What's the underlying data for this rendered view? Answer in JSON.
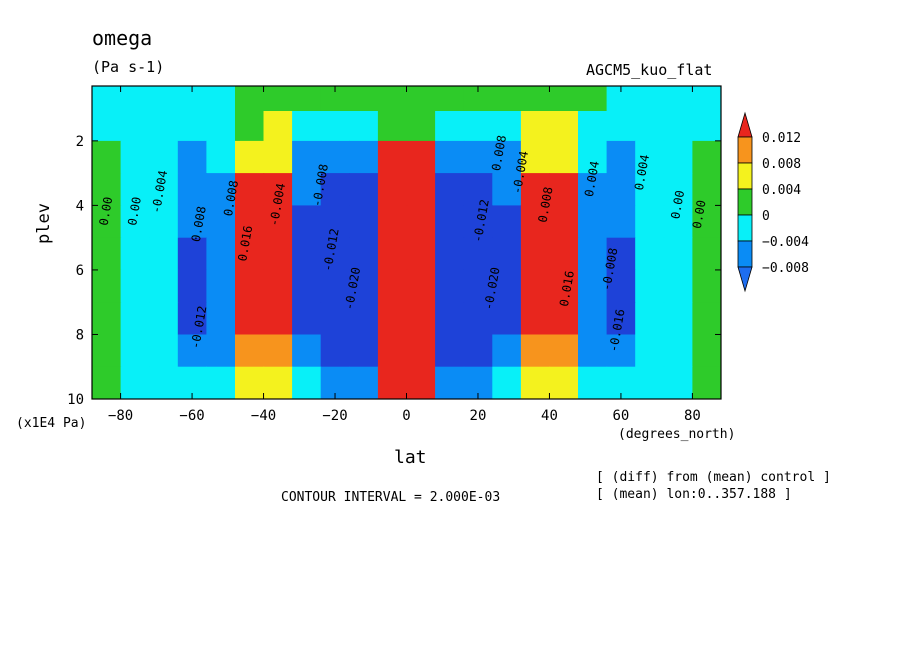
{
  "header": {
    "variable": "omega",
    "units": "(Pa s-1)",
    "experiment": "AGCM5_kuo_flat"
  },
  "footer": {
    "contour_interval": "CONTOUR INTERVAL = 2.000E-03",
    "note_diff": "[ (diff) from (mean) control ]",
    "note_mean": "[ (mean) lon:0..357.188 ]"
  },
  "chart_data": {
    "type": "heatmap",
    "xlabel": "lat",
    "xunit": "(degrees_north)",
    "ylabel": "plev",
    "yunit": "(x1E4 Pa)",
    "xlim": [
      -88,
      88
    ],
    "ylim": [
      10,
      0.3
    ],
    "x_ticks": [
      -80,
      -60,
      -40,
      -20,
      0,
      20,
      40,
      60,
      80
    ],
    "x_tick_labels": [
      "−80",
      "−60",
      "−40",
      "−20",
      "0",
      "20",
      "40",
      "60",
      "80"
    ],
    "y_ticks": [
      2,
      4,
      6,
      8,
      10
    ],
    "y_tick_labels": [
      "2",
      "4",
      "6",
      "8",
      "10"
    ],
    "colorbar": {
      "levels": [
        0.012,
        0.008,
        0.004,
        0,
        -0.004,
        -0.008
      ],
      "labels": [
        "0.012",
        "0.008",
        "0.004",
        "0",
        "−0.004",
        "−0.008"
      ],
      "colors": [
        "#e8261e",
        "#f7941d",
        "#f4f21e",
        "#2ecb2a",
        "#08f0f8",
        "#0a8cf5",
        "#1e42d8"
      ],
      "overflow_colors": {
        "high": "#e8261e",
        "low": "#1e6ef0"
      }
    },
    "cells_x": [
      -84,
      -76,
      -68,
      -60,
      -52,
      -44,
      -36,
      -28,
      -20,
      -12,
      -4,
      4,
      12,
      20,
      28,
      36,
      44,
      52,
      60,
      68,
      76,
      84
    ],
    "cells_y": [
      0.65,
      1.5,
      2.5,
      3.5,
      4.5,
      5.5,
      6.5,
      7.5,
      8.5,
      9.5
    ],
    "values": [
      [
        -0.002,
        -0.002,
        -0.002,
        -0.002,
        -0.002,
        0.001,
        0.002,
        0.001,
        0.001,
        0.001,
        0.001,
        0.001,
        0.001,
        0.001,
        0.001,
        0.002,
        0.002,
        0.001,
        -0.002,
        -0.002,
        -0.002,
        -0.002
      ],
      [
        -0.002,
        -0.002,
        -0.002,
        -0.003,
        -0.002,
        0.003,
        0.004,
        -0.003,
        -0.003,
        -0.002,
        0.001,
        0.001,
        -0.002,
        -0.003,
        -0.003,
        0.004,
        0.004,
        -0.002,
        -0.003,
        -0.002,
        -0.002,
        -0.002
      ],
      [
        0.001,
        -0.002,
        -0.003,
        -0.005,
        -0.003,
        0.006,
        0.007,
        -0.005,
        -0.006,
        -0.005,
        0.013,
        0.013,
        -0.005,
        -0.006,
        -0.005,
        0.007,
        0.006,
        -0.003,
        -0.005,
        -0.003,
        -0.002,
        0.001
      ],
      [
        0.001,
        -0.002,
        -0.003,
        -0.007,
        -0.005,
        0.012,
        0.014,
        -0.007,
        -0.009,
        -0.01,
        0.016,
        0.016,
        -0.01,
        -0.009,
        -0.007,
        0.014,
        0.012,
        -0.005,
        -0.007,
        -0.003,
        -0.002,
        0.001
      ],
      [
        0.001,
        -0.002,
        -0.003,
        -0.008,
        -0.006,
        0.013,
        0.015,
        -0.009,
        -0.01,
        -0.012,
        0.018,
        0.018,
        -0.012,
        -0.01,
        -0.009,
        0.015,
        0.013,
        -0.006,
        -0.008,
        -0.003,
        -0.002,
        0.001
      ],
      [
        0.001,
        -0.002,
        -0.003,
        -0.009,
        -0.006,
        0.014,
        0.016,
        -0.009,
        -0.011,
        -0.012,
        0.019,
        0.019,
        -0.012,
        -0.011,
        -0.009,
        0.016,
        0.014,
        -0.006,
        -0.009,
        -0.003,
        -0.002,
        0.001
      ],
      [
        0.001,
        -0.002,
        -0.004,
        -0.009,
        -0.007,
        0.014,
        0.016,
        -0.01,
        -0.011,
        -0.012,
        0.019,
        0.019,
        -0.012,
        -0.011,
        -0.01,
        0.016,
        0.014,
        -0.007,
        -0.009,
        -0.004,
        -0.002,
        0.001
      ],
      [
        0.001,
        -0.002,
        -0.004,
        -0.009,
        -0.006,
        0.013,
        0.015,
        -0.009,
        -0.011,
        -0.012,
        0.019,
        0.019,
        -0.012,
        -0.011,
        -0.009,
        0.015,
        0.013,
        -0.006,
        -0.009,
        -0.004,
        -0.002,
        0.001
      ],
      [
        0.001,
        -0.002,
        -0.003,
        -0.007,
        -0.005,
        0.008,
        0.01,
        -0.007,
        -0.009,
        -0.01,
        0.017,
        0.017,
        -0.01,
        -0.009,
        -0.007,
        0.01,
        0.008,
        -0.005,
        -0.007,
        -0.003,
        -0.002,
        0.001
      ],
      [
        0.001,
        -0.002,
        -0.002,
        -0.004,
        -0.003,
        0.004,
        0.006,
        -0.004,
        -0.005,
        -0.006,
        0.012,
        0.012,
        -0.006,
        -0.005,
        -0.004,
        0.006,
        0.004,
        -0.003,
        -0.004,
        -0.002,
        -0.002,
        0.001
      ]
    ],
    "contour_labels": [
      {
        "text": "0.00",
        "x": -83,
        "y": 4.2
      },
      {
        "text": "0.00",
        "x": -75,
        "y": 4.2
      },
      {
        "text": "-0.004",
        "x": -68,
        "y": 3.6
      },
      {
        "text": "0.008",
        "x": -57,
        "y": 4.6
      },
      {
        "text": "-0.012",
        "x": -57,
        "y": 7.8
      },
      {
        "text": "0.008",
        "x": -48,
        "y": 3.8
      },
      {
        "text": "0.016",
        "x": -44,
        "y": 5.2
      },
      {
        "text": "-0.004",
        "x": -35,
        "y": 4.0
      },
      {
        "text": "-0.008",
        "x": -23,
        "y": 3.4
      },
      {
        "text": "-0.012",
        "x": -20,
        "y": 5.4
      },
      {
        "text": "-0.020",
        "x": -14,
        "y": 6.6
      },
      {
        "text": "0.008",
        "x": 27,
        "y": 2.4
      },
      {
        "text": "-0.012",
        "x": 22,
        "y": 4.5
      },
      {
        "text": "-0.020",
        "x": 25,
        "y": 6.6
      },
      {
        "text": "-0.004",
        "x": 33,
        "y": 3.0
      },
      {
        "text": "0.008",
        "x": 40,
        "y": 4.0
      },
      {
        "text": "0.016",
        "x": 46,
        "y": 6.6
      },
      {
        "text": "0.004",
        "x": 53,
        "y": 3.2
      },
      {
        "text": "-0.008",
        "x": 58,
        "y": 6.0
      },
      {
        "text": "-0.016",
        "x": 60,
        "y": 7.9
      },
      {
        "text": "0.004",
        "x": 67,
        "y": 3.0
      },
      {
        "text": "0.00",
        "x": 77,
        "y": 4.0
      },
      {
        "text": "0.00",
        "x": 83,
        "y": 4.3
      }
    ]
  }
}
